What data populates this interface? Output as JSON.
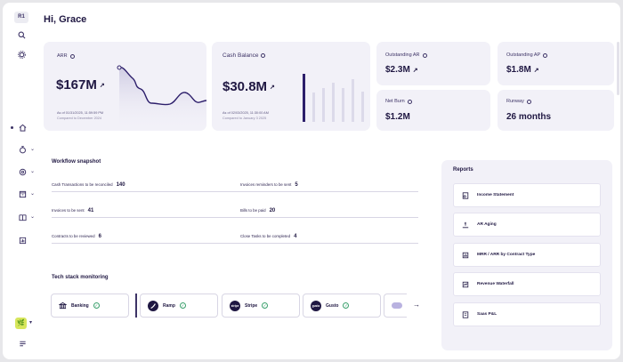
{
  "sidebar": {
    "workspace_badge": "R1",
    "icons": [
      "search-icon",
      "gear-icon",
      "home-icon",
      "workflow-icon",
      "search-doc-icon",
      "inbox-icon",
      "book-icon",
      "chart-icon",
      "list-icon"
    ],
    "avatar": "🌿"
  },
  "header": {
    "greeting": "Hi, Grace"
  },
  "arr": {
    "label": "ARR",
    "value": "$167M",
    "as_of": "As of 01/31/2025, 11:59:59 PM",
    "compared": "Compared to December 2024"
  },
  "cash": {
    "label": "Cash Balance",
    "value": "$30.8M",
    "as_of": "As of 02/03/2025, 11:30:00 AM",
    "compared": "Compared to January 3 2025"
  },
  "ar": {
    "label": "Outstanding AR",
    "value": "$2.3M"
  },
  "ap": {
    "label": "Outstanding AP",
    "value": "$1.8M"
  },
  "burn": {
    "label": "Net Burn",
    "value": "$1.2M"
  },
  "runway": {
    "label": "Runway",
    "value": "26 months"
  },
  "workflow": {
    "title": "Workflow snapshot",
    "items": [
      {
        "label": "Cash Transactions to be reconciled",
        "count": "140"
      },
      {
        "label": "Invoices reminders to be sent",
        "count": "5"
      },
      {
        "label": "Invoices to be sent",
        "count": "41"
      },
      {
        "label": "Bills to be paid",
        "count": "20"
      },
      {
        "label": "Contracts to be reviewed",
        "count": "6"
      },
      {
        "label": "Close Tasks to be completed",
        "count": "4"
      }
    ]
  },
  "tech": {
    "title": "Tech stack monitoring",
    "items": [
      {
        "name": "Banking",
        "logo": ""
      },
      {
        "name": "Ramp",
        "logo": ""
      },
      {
        "name": "Stripe",
        "logo": "stripe"
      },
      {
        "name": "Gusto",
        "logo": "gusto"
      }
    ]
  },
  "reports": {
    "title": "Reports",
    "items": [
      {
        "name": "Income Statement",
        "icon": "income-statement-icon"
      },
      {
        "name": "AR Aging",
        "icon": "ar-aging-icon"
      },
      {
        "name": "MRR / ARR by Contract Type",
        "icon": "bar-chart-icon"
      },
      {
        "name": "Revenue Waterfall",
        "icon": "waterfall-icon"
      },
      {
        "name": "Saas P&L",
        "icon": "pnl-icon"
      }
    ]
  },
  "colors": {
    "accent": "#2d1f6b",
    "card_bg": "#f2f1f8",
    "ok": "#3aa06c"
  }
}
